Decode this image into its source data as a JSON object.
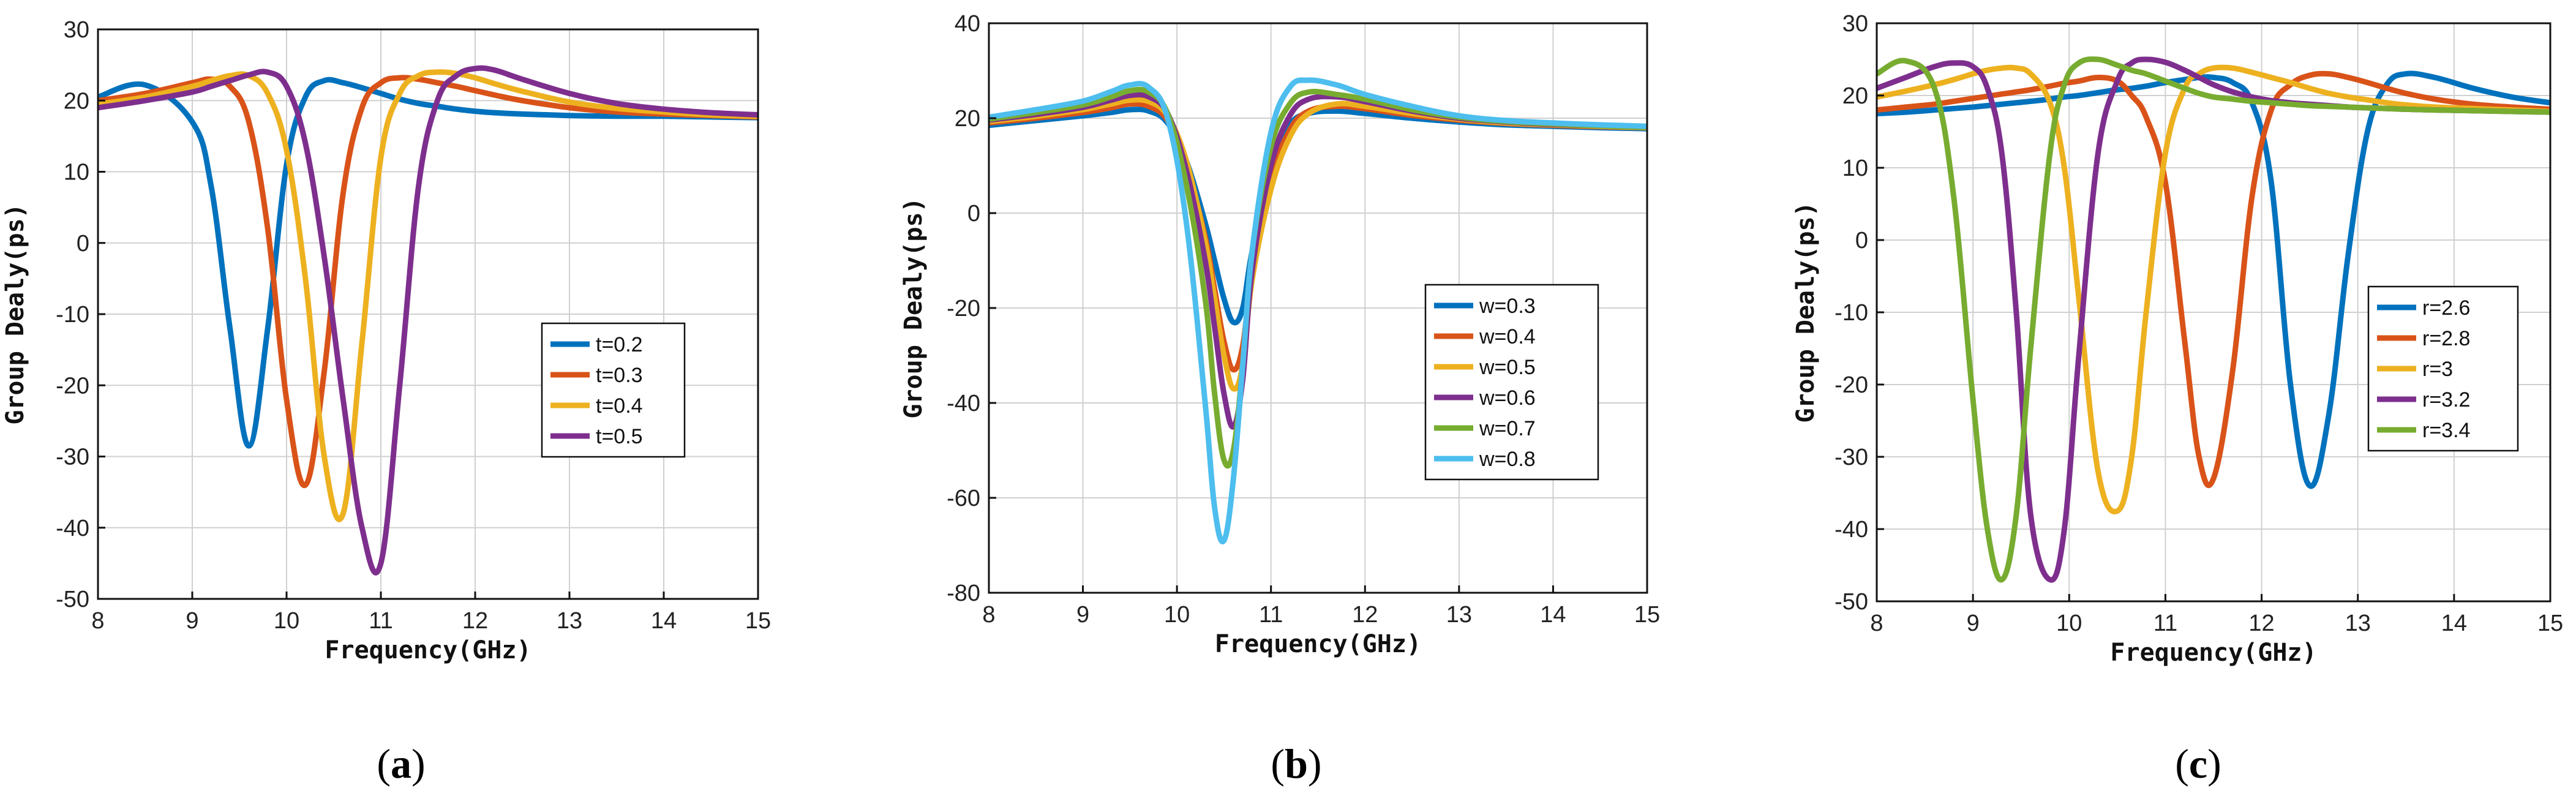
{
  "chart_data": [
    {
      "type": "line",
      "caption": "a",
      "xlabel": "Frequency(GHz)",
      "ylabel": "Group Dealy(ps)",
      "xlim": [
        8,
        15
      ],
      "ylim": [
        -50,
        30
      ],
      "xticks": [
        8,
        9,
        10,
        11,
        12,
        13,
        14,
        15
      ],
      "yticks": [
        30,
        20,
        10,
        0,
        -10,
        -20,
        -30,
        -40,
        -50
      ],
      "grid": true,
      "legend": "lower-right",
      "x": [
        8.0,
        8.5,
        9.0,
        9.2,
        9.4,
        9.6,
        9.8,
        10.0,
        10.2,
        10.4,
        10.6,
        10.8,
        11.0,
        11.2,
        11.4,
        11.6,
        11.8,
        12.0,
        12.2,
        12.5,
        13.0,
        13.5,
        14.0,
        14.5,
        15.0
      ],
      "series": [
        {
          "name": "t=0.2",
          "color": "#0072BD",
          "values": [
            20.5,
            22.2,
            17.0,
            8.0,
            -12.0,
            -28.5,
            -12.0,
            11.0,
            20.5,
            22.8,
            22.5,
            21.8,
            21.0,
            20.2,
            19.6,
            19.2,
            18.8,
            18.5,
            18.3,
            18.1,
            17.9,
            17.8,
            17.8,
            17.7,
            17.6
          ]
        },
        {
          "name": "t=0.3",
          "color": "#D95319",
          "values": [
            20.0,
            21.0,
            22.5,
            23.0,
            22.0,
            17.0,
            2.0,
            -22.0,
            -34.0,
            -18.0,
            7.0,
            19.0,
            22.5,
            23.2,
            23.0,
            22.5,
            22.0,
            21.4,
            20.8,
            20.0,
            19.0,
            18.4,
            18.1,
            17.9,
            17.7
          ]
        },
        {
          "name": "t=0.4",
          "color": "#EDB120",
          "values": [
            19.5,
            20.5,
            22.0,
            22.8,
            23.5,
            23.5,
            21.0,
            13.0,
            -5.0,
            -30.0,
            -38.0,
            -14.0,
            12.0,
            21.0,
            23.5,
            24.0,
            23.8,
            23.2,
            22.4,
            21.3,
            19.8,
            18.9,
            18.4,
            18.0,
            17.8
          ]
        },
        {
          "name": "t=0.5",
          "color": "#7E2F8E",
          "values": [
            19.0,
            20.0,
            21.2,
            22.0,
            22.8,
            23.6,
            24.0,
            22.0,
            14.0,
            -2.0,
            -22.0,
            -40.0,
            -45.0,
            -20.0,
            8.0,
            20.0,
            23.5,
            24.5,
            24.3,
            23.0,
            21.0,
            19.6,
            18.8,
            18.3,
            18.0
          ]
        }
      ]
    },
    {
      "type": "line",
      "caption": "b",
      "xlabel": "Frequency(GHz)",
      "ylabel": "Group Dealy(ps)",
      "xlim": [
        8,
        15
      ],
      "ylim": [
        -80,
        40
      ],
      "xticks": [
        8,
        9,
        10,
        11,
        12,
        13,
        14,
        15
      ],
      "yticks": [
        40,
        20,
        0,
        -20,
        -40,
        -60,
        -80
      ],
      "grid": true,
      "legend": "right",
      "x": [
        8.0,
        8.5,
        9.0,
        9.3,
        9.5,
        9.7,
        9.9,
        10.1,
        10.3,
        10.4,
        10.5,
        10.6,
        10.7,
        10.8,
        11.0,
        11.2,
        11.4,
        11.7,
        12.0,
        12.5,
        13.0,
        13.5,
        14.0,
        14.5,
        15.0
      ],
      "series": [
        {
          "name": "w=0.3",
          "color": "#0072BD",
          "values": [
            18.5,
            19.5,
            20.5,
            21.2,
            21.8,
            21.5,
            19.0,
            11.0,
            -2.0,
            -10.0,
            -18.0,
            -23.0,
            -20.0,
            -8.0,
            9.0,
            18.5,
            21.0,
            21.5,
            21.0,
            20.0,
            19.2,
            18.6,
            18.3,
            18.0,
            17.8
          ]
        },
        {
          "name": "w=0.4",
          "color": "#D95319",
          "values": [
            19.0,
            20.0,
            21.2,
            22.2,
            23.0,
            22.5,
            19.5,
            10.0,
            -5.0,
            -16.0,
            -27.0,
            -33.0,
            -28.0,
            -12.0,
            7.0,
            17.5,
            21.5,
            22.5,
            22.0,
            20.6,
            19.6,
            18.9,
            18.5,
            18.2,
            18.0
          ]
        },
        {
          "name": "w=0.5",
          "color": "#EDB120",
          "values": [
            19.3,
            20.4,
            21.8,
            23.0,
            23.8,
            23.5,
            20.5,
            11.0,
            -6.0,
            -18.0,
            -30.0,
            -37.0,
            -32.0,
            -14.0,
            5.0,
            16.0,
            21.0,
            23.0,
            22.5,
            21.0,
            19.8,
            19.0,
            18.6,
            18.3,
            18.0
          ]
        },
        {
          "name": "w=0.6",
          "color": "#7E2F8E",
          "values": [
            19.6,
            20.8,
            22.3,
            23.8,
            24.8,
            24.5,
            21.0,
            9.0,
            -10.0,
            -24.0,
            -38.0,
            -45.0,
            -35.0,
            -12.0,
            10.0,
            20.5,
            24.0,
            24.5,
            23.5,
            21.5,
            20.0,
            19.2,
            18.7,
            18.4,
            18.1
          ]
        },
        {
          "name": "w=0.7",
          "color": "#77AC30",
          "values": [
            19.8,
            21.2,
            22.8,
            24.5,
            25.8,
            25.5,
            21.0,
            6.0,
            -18.0,
            -38.0,
            -52.0,
            -50.0,
            -32.0,
            -8.0,
            14.0,
            23.0,
            25.5,
            25.0,
            24.0,
            21.8,
            20.2,
            19.3,
            18.8,
            18.4,
            18.1
          ]
        },
        {
          "name": "w=0.8",
          "color": "#4DBEEE",
          "values": [
            20.2,
            21.8,
            23.6,
            25.6,
            27.0,
            26.5,
            20.0,
            -2.0,
            -40.0,
            -62.0,
            -69.0,
            -56.0,
            -32.0,
            -8.0,
            17.0,
            26.5,
            28.0,
            27.0,
            25.0,
            22.5,
            20.5,
            19.5,
            19.0,
            18.6,
            18.3
          ]
        }
      ]
    },
    {
      "type": "line",
      "caption": "c",
      "xlabel": "Frequency(GHz)",
      "ylabel": "Group Dealy(ps)",
      "xlim": [
        8,
        15
      ],
      "ylim": [
        -50,
        30
      ],
      "xticks": [
        8,
        9,
        10,
        11,
        12,
        13,
        14,
        15
      ],
      "yticks": [
        30,
        20,
        10,
        0,
        -10,
        -20,
        -30,
        -40,
        -50
      ],
      "grid": true,
      "legend": "right",
      "x": [
        8.0,
        8.3,
        8.6,
        8.8,
        9.0,
        9.15,
        9.3,
        9.45,
        9.6,
        9.8,
        9.95,
        10.1,
        10.3,
        10.5,
        10.65,
        10.8,
        11.0,
        11.2,
        11.35,
        11.5,
        11.7,
        11.9,
        12.1,
        12.3,
        12.5,
        12.7,
        12.9,
        13.1,
        13.3,
        13.5,
        13.8,
        14.2,
        14.6,
        15.0
      ],
      "series": [
        {
          "name": "r=2.6",
          "color": "#0072BD",
          "values": [
            17.5,
            17.7,
            18.0,
            18.2,
            18.4,
            18.6,
            18.8,
            19.0,
            19.2,
            19.5,
            19.8,
            20.0,
            20.4,
            20.8,
            21.0,
            21.3,
            21.8,
            22.2,
            22.5,
            22.5,
            21.8,
            19.0,
            8.0,
            -20.0,
            -34.0,
            -24.0,
            -2.0,
            15.0,
            21.5,
            23.0,
            22.5,
            21.0,
            19.8,
            19.0
          ]
        },
        {
          "name": "r=2.8",
          "color": "#D95319",
          "values": [
            18.0,
            18.4,
            18.8,
            19.2,
            19.6,
            19.9,
            20.2,
            20.5,
            20.8,
            21.3,
            21.7,
            22.0,
            22.5,
            22.0,
            20.0,
            17.0,
            8.0,
            -14.0,
            -30.0,
            -33.0,
            -18.0,
            6.0,
            18.0,
            21.5,
            22.8,
            23.0,
            22.5,
            21.8,
            21.0,
            20.3,
            19.5,
            18.8,
            18.4,
            18.1
          ]
        },
        {
          "name": "r=3",
          "color": "#EDB120",
          "values": [
            19.8,
            20.6,
            21.5,
            22.2,
            23.0,
            23.5,
            23.8,
            23.8,
            23.0,
            19.0,
            10.0,
            -8.0,
            -32.0,
            -37.5,
            -30.0,
            -10.0,
            12.0,
            21.0,
            23.0,
            23.8,
            23.8,
            23.2,
            22.5,
            21.8,
            21.0,
            20.3,
            19.8,
            19.4,
            19.0,
            18.7,
            18.4,
            18.2,
            18.0,
            17.8
          ]
        },
        {
          "name": "r=3.2",
          "color": "#7E2F8E",
          "values": [
            21.0,
            22.5,
            24.0,
            24.5,
            24.0,
            21.0,
            12.0,
            -10.0,
            -38.0,
            -47.0,
            -40.0,
            -16.0,
            12.0,
            22.0,
            24.5,
            25.0,
            24.6,
            23.5,
            22.5,
            21.5,
            20.5,
            19.8,
            19.3,
            19.0,
            18.8,
            18.6,
            18.4,
            18.3,
            18.2,
            18.1,
            18.0,
            17.9,
            17.8,
            17.7
          ]
        },
        {
          "name": "r=3.4",
          "color": "#77AC30",
          "values": [
            23.0,
            24.8,
            21.0,
            6.0,
            -22.0,
            -40.0,
            -47.0,
            -38.0,
            -15.0,
            12.0,
            21.5,
            24.5,
            25.0,
            24.2,
            23.5,
            23.0,
            22.0,
            21.0,
            20.3,
            19.8,
            19.5,
            19.2,
            19.0,
            18.8,
            18.6,
            18.5,
            18.4,
            18.3,
            18.2,
            18.1,
            18.0,
            17.9,
            17.8,
            17.7
          ]
        }
      ]
    }
  ]
}
